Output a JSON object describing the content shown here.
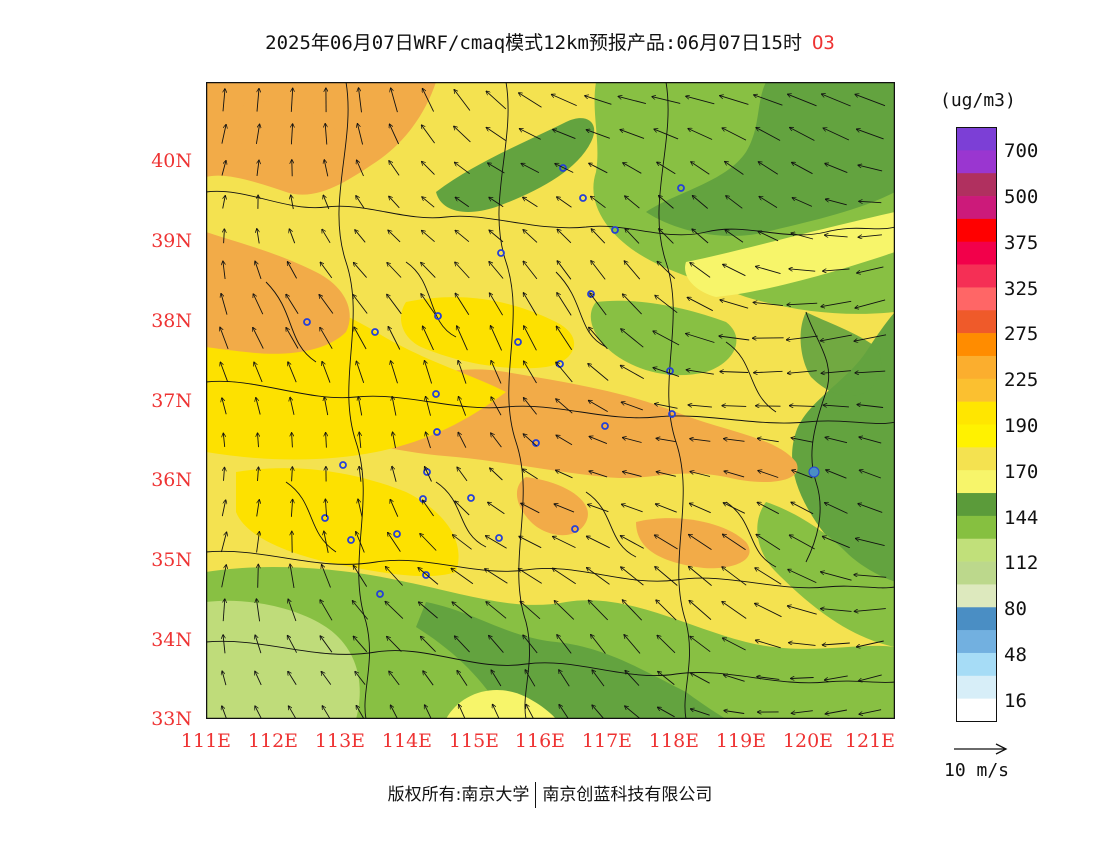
{
  "title": {
    "main": "2025年06月07日WRF/cmaq模式12km预报产品:06月07日15时",
    "pollutant": "O3"
  },
  "axes": {
    "lat_labels": [
      "40N",
      "39N",
      "38N",
      "37N",
      "36N",
      "35N",
      "34N",
      "33N"
    ],
    "lon_labels": [
      "111E",
      "112E",
      "113E",
      "114E",
      "115E",
      "116E",
      "117E",
      "118E",
      "119E",
      "120E",
      "121E"
    ]
  },
  "colorbar": {
    "units": "(ug/m3)",
    "labels": [
      "700",
      "500",
      "375",
      "325",
      "275",
      "225",
      "190",
      "170",
      "144",
      "112",
      "80",
      "48",
      "16"
    ],
    "colors_top_to_bottom": [
      "#7c3fd6",
      "#9a36d0",
      "#b0305f",
      "#cc1a7a",
      "#ff0000",
      "#f2004a",
      "#f52f55",
      "#ff6666",
      "#ef5a2a",
      "#ff8c00",
      "#fbae2e",
      "#fbc030",
      "#ffe600",
      "#fff200",
      "#f4e250",
      "#f7f56a",
      "#5b9b3a",
      "#86c040",
      "#c1e07a",
      "#bcd88c",
      "#dde9be",
      "#4a8ec4",
      "#72b0e0",
      "#a6dcf6",
      "#d7eef8",
      "#ffffff"
    ]
  },
  "wind_reference": {
    "label": "10 m/s"
  },
  "footer": {
    "copyright": "版权所有:南京大学",
    "company": "南京创蓝科技有限公司"
  },
  "map_colors": {
    "orange": "#f2ab48",
    "gold": "#fde100",
    "pale_yellow": "#f5e95a",
    "light_yellow": "#f7f56a",
    "dark_green": "#63a33f",
    "green": "#88c043",
    "light_green": "#bfdc7a"
  }
}
